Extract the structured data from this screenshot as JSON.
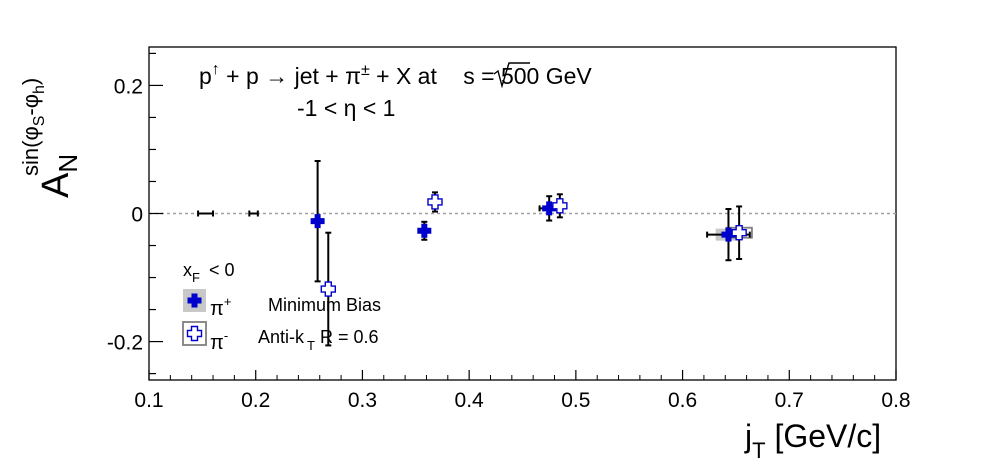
{
  "chart_data": {
    "type": "scatter",
    "title": "",
    "annotations": {
      "reaction_line": [
        "p",
        "↑",
        " + p → jet + π",
        "±",
        " + X at ",
        "s = 500 GeV"
      ],
      "eta_cut": "-1 < η < 1",
      "selection": "Minimum Bias",
      "jet_algo": [
        "Anti-k",
        "T",
        " R = 0.6"
      ]
    },
    "xlabel": [
      "j",
      "T",
      " [GeV/c]"
    ],
    "ylabel": [
      "A",
      "N",
      "sin(φ",
      "S",
      "-φ",
      "h",
      ")"
    ],
    "xlim": [
      0.1,
      0.8
    ],
    "ylim": [
      -0.26,
      0.26
    ],
    "xticks": [
      0.1,
      0.2,
      0.3,
      0.4,
      0.5,
      0.6,
      0.7,
      0.8
    ],
    "xtick_labels": [
      "0.1",
      "0.2",
      "0.3",
      "0.4",
      "0.5",
      "0.6",
      "0.7",
      "0.8"
    ],
    "yticks": [
      -0.2,
      0,
      0.2
    ],
    "ytick_labels": [
      "-0.2",
      "0",
      "0.2"
    ],
    "zero_line": true,
    "grid": false,
    "legend": {
      "placement": "bottom-left",
      "header": [
        "x",
        "F",
        " < 0"
      ],
      "entries": [
        [
          "π",
          "+"
        ],
        [
          "π",
          "-"
        ]
      ]
    },
    "series": [
      {
        "name": "π+",
        "color": "#0000cc",
        "marker": "filled-cross",
        "box_color": "#c8c8c8",
        "points": [
          {
            "x": 0.153,
            "y": 0.0,
            "xerr": 0.007,
            "yerr": 0.0
          },
          {
            "x": 0.258,
            "y": -0.012,
            "yerr": 0.094
          },
          {
            "x": 0.358,
            "y": -0.027,
            "yerr": 0.014
          },
          {
            "x": 0.475,
            "y": 0.008,
            "xerr": 0.009,
            "yerr": 0.019
          },
          {
            "x": 0.643,
            "y": -0.033,
            "xerr": 0.02,
            "yerr": 0.04
          }
        ]
      },
      {
        "name": "π-",
        "color": "#0000cc",
        "marker": "open-cross",
        "box_color": "#808080",
        "points": [
          {
            "x": 0.198,
            "y": 0.0,
            "xerr": 0.004,
            "yerr": 0.0
          },
          {
            "x": 0.268,
            "y": -0.118,
            "yerr": 0.088
          },
          {
            "x": 0.368,
            "y": 0.018,
            "yerr": 0.015
          },
          {
            "x": 0.485,
            "y": 0.012,
            "xerr": 0.005,
            "yerr": 0.018
          },
          {
            "x": 0.653,
            "y": -0.03,
            "yerr": 0.041
          }
        ]
      }
    ]
  }
}
